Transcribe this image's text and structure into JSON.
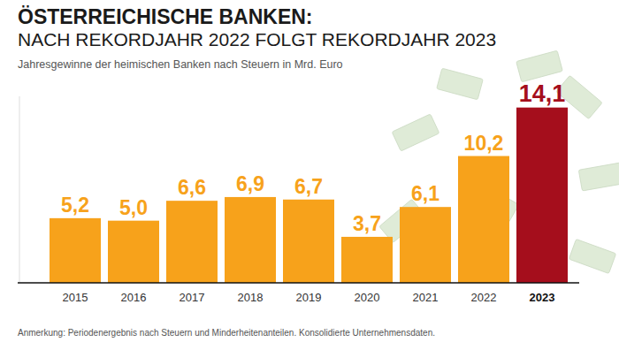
{
  "chart_data": {
    "type": "bar",
    "title": "ÖSTERREICHISCHE BANKEN:",
    "subtitle": "NACH REKORDJAHR 2022 FOLGT REKORDJAHR 2023",
    "ylabel": "Jahresgewinne der heimischen Banken nach Steuern in Mrd. Euro",
    "annotations": [
      "Anmerkung: Periodenergebnis nach Steuern und Minderheitenanteilen. Konsolidierte Unternehmensdaten."
    ],
    "categories": [
      "2015",
      "2016",
      "2017",
      "2018",
      "2019",
      "2020",
      "2021",
      "2022",
      "2023"
    ],
    "values": [
      5.2,
      5.0,
      6.6,
      6.9,
      6.7,
      3.7,
      6.1,
      10.2,
      14.1
    ],
    "value_labels": [
      "5,2",
      "5,0",
      "6,6",
      "6,9",
      "6,7",
      "3,7",
      "6,1",
      "10,2",
      "14,1"
    ],
    "colors": [
      "#f7a21b",
      "#f7a21b",
      "#f7a21b",
      "#f7a21b",
      "#f7a21b",
      "#f7a21b",
      "#f7a21b",
      "#f7a21b",
      "#a50e1c"
    ],
    "ylim": [
      0,
      15
    ],
    "yticks": [
      0
    ],
    "grid": false,
    "data_labels": true,
    "tick_labels": "x"
  }
}
